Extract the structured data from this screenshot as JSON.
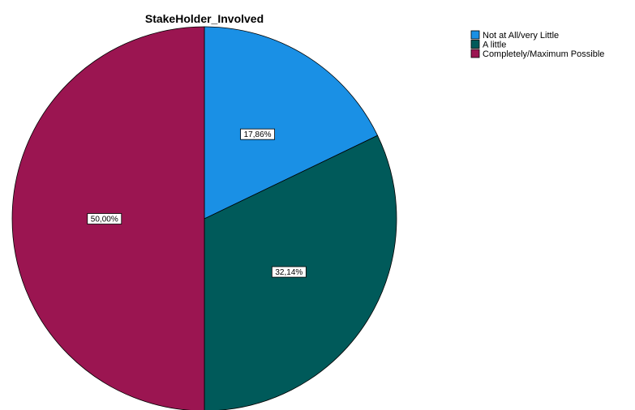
{
  "chart_data": {
    "type": "pie",
    "title": "StakeHolder_Involved",
    "start_angle_deg": 0,
    "direction": "clockwise",
    "slices": [
      {
        "label": "Not at All/very Little",
        "value": 17.86,
        "display": "17,86%",
        "color": "#1a90e5"
      },
      {
        "label": "A little",
        "value": 32.14,
        "display": "32,14%",
        "color": "#005a5a"
      },
      {
        "label": "Completely/Maximum Possible",
        "value": 50.0,
        "display": "50,00%",
        "color": "#9b1551"
      }
    ],
    "legend": {
      "placement": "top-right"
    }
  }
}
